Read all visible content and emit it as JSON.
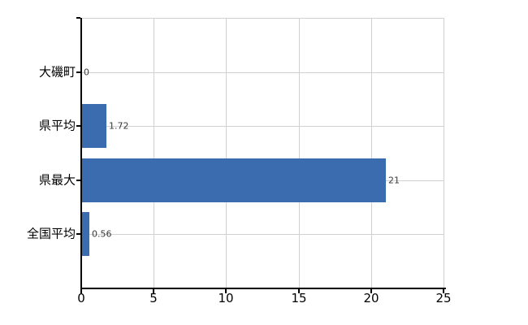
{
  "chart_data": {
    "type": "bar",
    "orientation": "horizontal",
    "title": "",
    "xlabel": "",
    "ylabel": "",
    "categories": [
      "大磯町",
      "県平均",
      "県最大",
      "全国平均"
    ],
    "values": [
      0,
      1.72,
      21,
      0.56
    ],
    "value_labels": [
      "0",
      "1.72",
      "21",
      "0.56"
    ],
    "x_ticks": [
      "0",
      "5",
      "10",
      "15",
      "20",
      "25"
    ],
    "xlim": [
      0,
      25
    ],
    "grid": true,
    "legend": false,
    "colors": {
      "bar": "#3c6cb0",
      "gridline": "#d1d1d1",
      "axis": "#000000",
      "tick_label": "#000000",
      "value_label": "#3a3a3a",
      "background": "#ffffff"
    }
  }
}
